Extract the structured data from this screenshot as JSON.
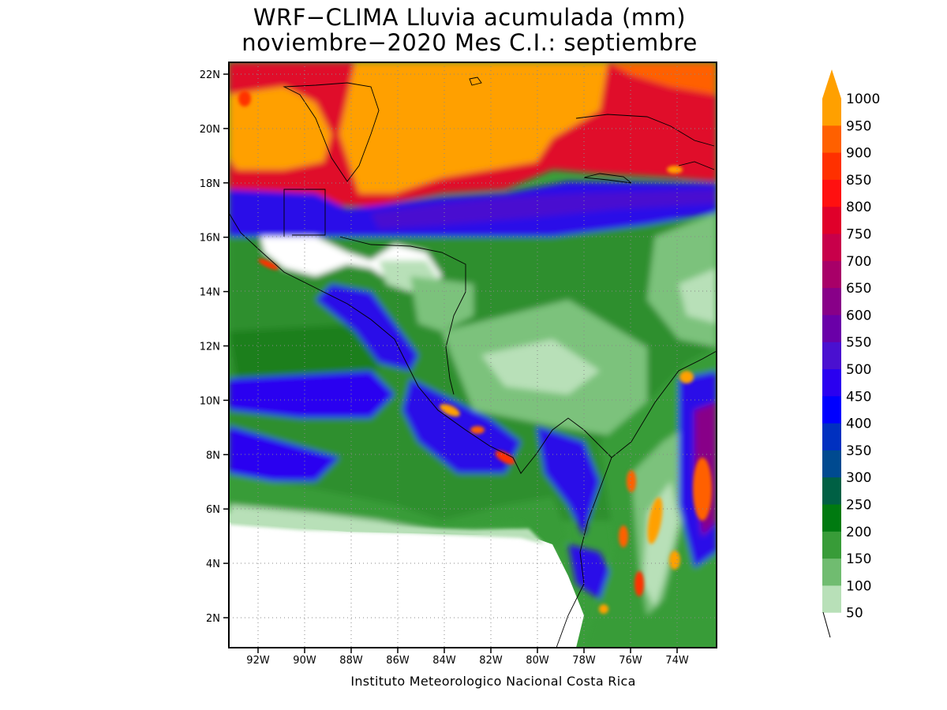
{
  "title_line1": "WRF−CLIMA Lluvia acumulada (mm)",
  "title_line2": "noviembre−2020 Mes C.I.: septiembre",
  "credit": "Instituto Meteorologico Nacional Costa Rica",
  "chart_data": {
    "type": "heatmap",
    "variable": "Lluvia acumulada",
    "units": "mm",
    "xlim": [
      -93.3,
      -72.3
    ],
    "ylim": [
      1.0,
      22.4
    ],
    "x_ticks": [
      "92W",
      "90W",
      "88W",
      "86W",
      "84W",
      "82W",
      "80W",
      "78W",
      "76W",
      "74W"
    ],
    "y_ticks": [
      "22N",
      "20N",
      "18N",
      "16N",
      "14N",
      "12N",
      "10N",
      "8N",
      "6N",
      "4N",
      "2N"
    ],
    "colorbar": {
      "levels": [
        "1000",
        "950",
        "900",
        "850",
        "800",
        "750",
        "700",
        "650",
        "600",
        "550",
        "500",
        "450",
        "400",
        "350",
        "300",
        "250",
        "200",
        "150",
        "100",
        "50"
      ],
      "colors": [
        "#FFA000",
        "#FF6000",
        "#FF3000",
        "#FF1010",
        "#E0002A",
        "#C8004A",
        "#A80068",
        "#880088",
        "#6A00A8",
        "#4A10D0",
        "#2A00F0",
        "#0000FF",
        "#0030C0",
        "#004A90",
        "#006044",
        "#007A10",
        "#389C38",
        "#70BC70",
        "#B8E0B8",
        "#FFFFFF"
      ],
      "extend": "max"
    }
  }
}
